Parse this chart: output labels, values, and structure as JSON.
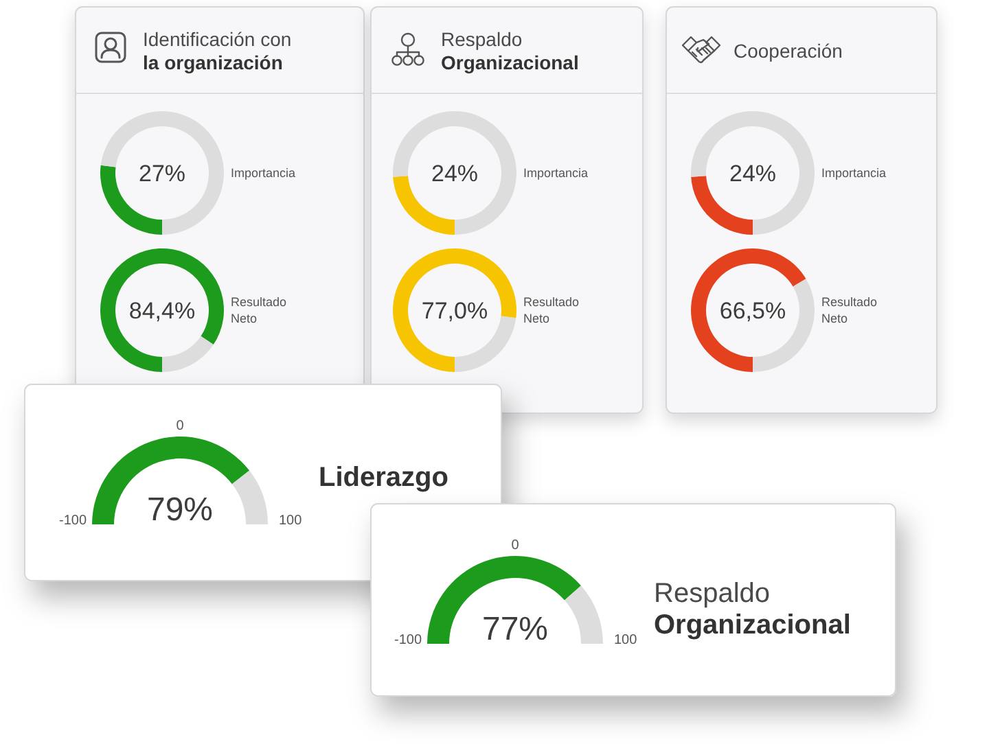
{
  "chart_data": [
    {
      "type": "donut",
      "title": "Identificación con\nla organización",
      "categories": [
        null,
        null
      ],
      "values": [
        27,
        73
      ],
      "colors": [
        "#1c9b1c",
        "#dddddd"
      ],
      "value_labels": [
        "27%",
        null
      ],
      "annotations": [
        "Importancia"
      ]
    },
    {
      "type": "donut",
      "categories": [
        null,
        null
      ],
      "values": [
        84.4,
        15.6
      ],
      "colors": [
        "#1c9b1c",
        "#dddddd"
      ],
      "value_labels": [
        "84,4%",
        null
      ],
      "annotations": [
        "Resultado Neto"
      ]
    },
    {
      "type": "donut",
      "title": "Respaldo\nOrganizacional",
      "categories": [
        null,
        null
      ],
      "values": [
        24,
        76
      ],
      "colors": [
        "#f6c400",
        "#dddddd"
      ],
      "value_labels": [
        "24%",
        null
      ],
      "annotations": [
        "Importancia"
      ]
    },
    {
      "type": "donut",
      "categories": [
        null,
        null
      ],
      "values": [
        77.0,
        23.0
      ],
      "colors": [
        "#f6c400",
        "#dddddd"
      ],
      "value_labels": [
        "77,0%",
        null
      ],
      "annotations": [
        "Resultado Neto"
      ]
    },
    {
      "type": "donut",
      "title": "Cooperación",
      "categories": [
        null,
        null
      ],
      "values": [
        24,
        76
      ],
      "colors": [
        "#e4411f",
        "#dddddd"
      ],
      "value_labels": [
        "24%",
        null
      ],
      "annotations": [
        "Importancia"
      ]
    },
    {
      "type": "donut",
      "categories": [
        null,
        null
      ],
      "values": [
        66.5,
        33.5
      ],
      "colors": [
        "#e4411f",
        "#dddddd"
      ],
      "value_labels": [
        "66,5%",
        null
      ],
      "annotations": [
        "Resultado Neto"
      ]
    },
    {
      "type": "donut",
      "title": "Liderazgo",
      "categories": [
        null,
        null
      ],
      "values": [
        79,
        21
      ],
      "colors": [
        "#1c9b1c",
        "#dddddd"
      ],
      "value_labels": [
        "79%",
        null
      ],
      "annotations": [
        "-100",
        "0",
        "100"
      ]
    },
    {
      "type": "donut",
      "title": "Respaldo\nOrganizacional",
      "categories": [
        null,
        null
      ],
      "values": [
        77,
        23
      ],
      "colors": [
        "#1c9b1c",
        "#dddddd"
      ],
      "value_labels": [
        "77%",
        null
      ],
      "annotations": [
        "-100",
        "0",
        "100"
      ]
    }
  ]
}
